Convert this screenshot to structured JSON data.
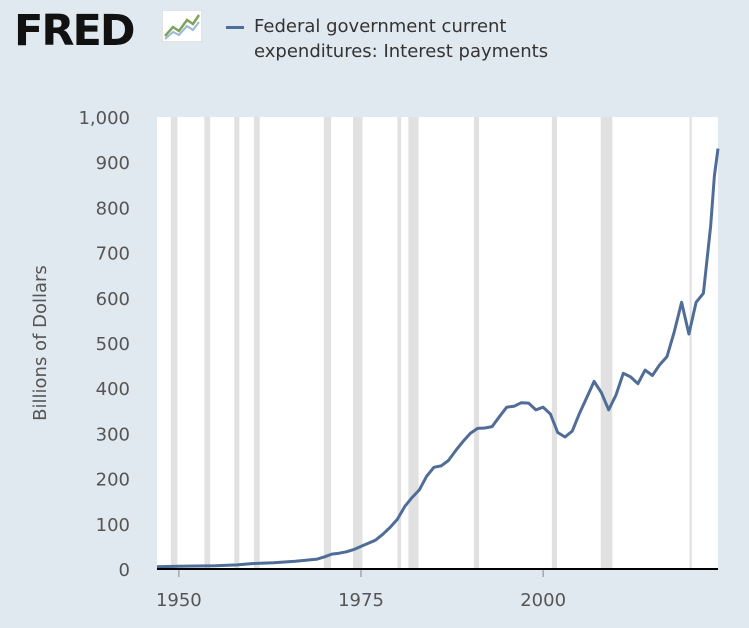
{
  "header": {
    "logo_text": "FRED",
    "logo_icon": "trend-chart-icon"
  },
  "colors": {
    "background": "#e1e9f0",
    "plot_background": "#ffffff",
    "series": "#4f6d96",
    "recession": "#e1e1e1",
    "axis_text": "#555555"
  },
  "chart_data": {
    "type": "line",
    "title": "Federal government current expenditures: Interest payments",
    "xlabel": "",
    "ylabel": "Billions of Dollars",
    "xlim": [
      1947,
      2024
    ],
    "ylim": [
      0,
      1000
    ],
    "grid": false,
    "legend_position": "top",
    "y_ticks": [
      {
        "value": 0,
        "label": "0"
      },
      {
        "value": 100,
        "label": "100"
      },
      {
        "value": 200,
        "label": "200"
      },
      {
        "value": 300,
        "label": "300"
      },
      {
        "value": 400,
        "label": "400"
      },
      {
        "value": 500,
        "label": "500"
      },
      {
        "value": 600,
        "label": "600"
      },
      {
        "value": 700,
        "label": "700"
      },
      {
        "value": 800,
        "label": "800"
      },
      {
        "value": 900,
        "label": "900"
      },
      {
        "value": 1000,
        "label": "1,000"
      }
    ],
    "x_ticks": [
      {
        "value": 1950,
        "label": "1950"
      },
      {
        "value": 1975,
        "label": "1975"
      },
      {
        "value": 2000,
        "label": "2000"
      }
    ],
    "recessions": [
      [
        1948.9,
        1949.8
      ],
      [
        1953.5,
        1954.3
      ],
      [
        1957.6,
        1958.3
      ],
      [
        1960.3,
        1961.1
      ],
      [
        1969.9,
        1970.9
      ],
      [
        1973.9,
        1975.2
      ],
      [
        1980.0,
        1980.5
      ],
      [
        1981.5,
        1982.9
      ],
      [
        1990.5,
        1991.2
      ],
      [
        2001.2,
        2001.9
      ],
      [
        2007.9,
        2009.5
      ],
      [
        2020.1,
        2020.4
      ]
    ],
    "series": [
      {
        "name": "Federal government current expenditures: Interest payments",
        "x": [
          1947,
          1950,
          1955,
          1958,
          1960,
          1963,
          1966,
          1969,
          1970,
          1971,
          1972,
          1973,
          1974,
          1975,
          1976,
          1977,
          1978,
          1979,
          1980,
          1981,
          1982,
          1983,
          1984,
          1985,
          1986,
          1987,
          1988,
          1989,
          1990,
          1991,
          1992,
          1993,
          1994,
          1995,
          1996,
          1997,
          1998,
          1999,
          2000,
          2001,
          2002,
          2003,
          2004,
          2005,
          2006,
          2007,
          2008,
          2009,
          2010,
          2011,
          2012,
          2013,
          2014,
          2015,
          2016,
          2017,
          2018,
          2019,
          2020,
          2021,
          2022,
          2023,
          2023.5,
          2024
        ],
        "y": [
          5,
          6,
          7,
          9,
          12,
          14,
          17,
          22,
          27,
          33,
          35,
          38,
          43,
          50,
          57,
          64,
          77,
          92,
          110,
          138,
          158,
          175,
          205,
          225,
          228,
          240,
          262,
          282,
          300,
          311,
          312,
          315,
          337,
          358,
          360,
          368,
          367,
          352,
          358,
          343,
          302,
          292,
          305,
          345,
          380,
          415,
          390,
          352,
          385,
          433,
          425,
          410,
          440,
          428,
          452,
          470,
          525,
          590,
          520,
          590,
          610,
          760,
          870,
          930
        ]
      }
    ]
  }
}
